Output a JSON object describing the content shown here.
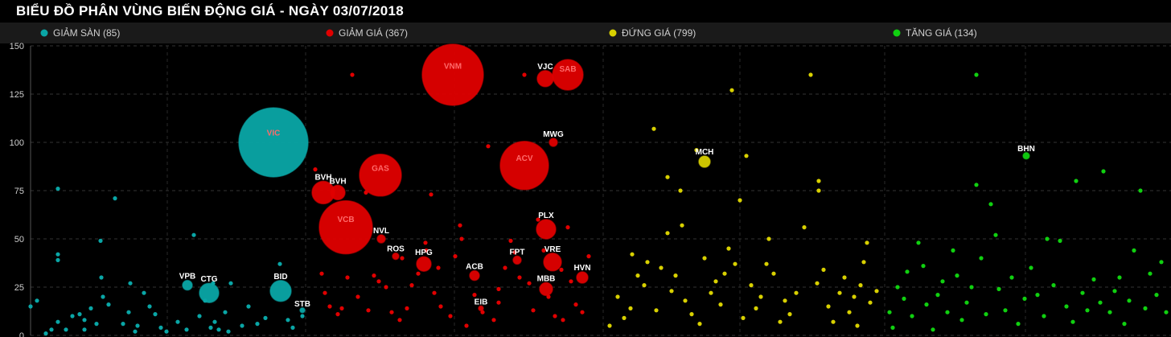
{
  "chart_data": {
    "type": "scatter",
    "title": "BIỂU ĐỒ PHÂN VÙNG BIẾN ĐỘNG GIÁ - NGÀY 03/07/2018",
    "ylim": [
      0,
      150
    ],
    "yticks": [
      0,
      25,
      50,
      75,
      100,
      125,
      150
    ],
    "xlim": [
      0,
      1456
    ],
    "grid": true,
    "legend_placement": "top",
    "series": [
      {
        "name": "GIẢM SÀN (85)",
        "color": "#0aa6a6",
        "points": [
          {
            "x": 38,
            "y": 15
          },
          {
            "x": 46,
            "y": 18
          },
          {
            "x": 57,
            "y": 1
          },
          {
            "x": 64,
            "y": 3
          },
          {
            "x": 72,
            "y": 76
          },
          {
            "x": 82,
            "y": 3
          },
          {
            "x": 72,
            "y": 7
          },
          {
            "x": 99,
            "y": 11
          },
          {
            "x": 72,
            "y": 39
          },
          {
            "x": 72,
            "y": 42
          },
          {
            "x": 105,
            "y": 8
          },
          {
            "x": 105,
            "y": 3
          },
          {
            "x": 120,
            "y": 6
          },
          {
            "x": 125,
            "y": 49
          },
          {
            "x": 126,
            "y": 30
          },
          {
            "x": 128,
            "y": 20
          },
          {
            "x": 135,
            "y": 16
          },
          {
            "x": 143,
            "y": 71
          },
          {
            "x": 153,
            "y": 6
          },
          {
            "x": 160,
            "y": 12
          },
          {
            "x": 162,
            "y": 27
          },
          {
            "x": 168,
            "y": 2
          },
          {
            "x": 171,
            "y": 5
          },
          {
            "x": 179,
            "y": 22
          },
          {
            "x": 186,
            "y": 15
          },
          {
            "x": 193,
            "y": 11
          },
          {
            "x": 200,
            "y": 4
          },
          {
            "x": 207,
            "y": 2
          },
          {
            "x": 221,
            "y": 7
          },
          {
            "x": 232,
            "y": 3
          },
          {
            "x": 241,
            "y": 52
          },
          {
            "x": 248,
            "y": 10
          },
          {
            "x": 255,
            "y": 18
          },
          {
            "x": 262,
            "y": 4
          },
          {
            "x": 267,
            "y": 7
          },
          {
            "x": 272,
            "y": 3
          },
          {
            "x": 280,
            "y": 12
          },
          {
            "x": 284,
            "y": 2
          },
          {
            "x": 287,
            "y": 27
          },
          {
            "x": 301,
            "y": 5
          },
          {
            "x": 309,
            "y": 15
          },
          {
            "x": 320,
            "y": 6
          },
          {
            "x": 330,
            "y": 9
          },
          {
            "x": 348,
            "y": 37
          },
          {
            "x": 358,
            "y": 8
          },
          {
            "x": 364,
            "y": 4
          },
          {
            "x": 376,
            "y": 10
          },
          {
            "x": 265,
            "y": 27
          },
          {
            "x": 113,
            "y": 14
          },
          {
            "x": 90,
            "y": 10
          }
        ],
        "labeled": [
          {
            "label": "VIC",
            "x": 340,
            "y": 100,
            "size": 43
          },
          {
            "label": "VPB",
            "x": 233,
            "y": 26,
            "size": 6
          },
          {
            "label": "CTG",
            "x": 260,
            "y": 22,
            "size": 12
          },
          {
            "label": "BID",
            "x": 349,
            "y": 23,
            "size": 13
          },
          {
            "label": "STB",
            "x": 376,
            "y": 13,
            "size": 3
          }
        ]
      },
      {
        "name": "GIẢM GIÁ (367)",
        "color": "#e00000",
        "points": [
          {
            "x": 392,
            "y": 86
          },
          {
            "x": 400,
            "y": 32
          },
          {
            "x": 404,
            "y": 22
          },
          {
            "x": 410,
            "y": 15
          },
          {
            "x": 420,
            "y": 11
          },
          {
            "x": 438,
            "y": 135
          },
          {
            "x": 432,
            "y": 30
          },
          {
            "x": 445,
            "y": 20
          },
          {
            "x": 458,
            "y": 13
          },
          {
            "x": 465,
            "y": 31
          },
          {
            "x": 471,
            "y": 28
          },
          {
            "x": 480,
            "y": 25
          },
          {
            "x": 487,
            "y": 12
          },
          {
            "x": 497,
            "y": 8
          },
          {
            "x": 506,
            "y": 14
          },
          {
            "x": 512,
            "y": 26
          },
          {
            "x": 520,
            "y": 32
          },
          {
            "x": 529,
            "y": 48
          },
          {
            "x": 536,
            "y": 73
          },
          {
            "x": 540,
            "y": 22
          },
          {
            "x": 548,
            "y": 15
          },
          {
            "x": 560,
            "y": 10
          },
          {
            "x": 566,
            "y": 41
          },
          {
            "x": 572,
            "y": 57
          },
          {
            "x": 574,
            "y": 50
          },
          {
            "x": 580,
            "y": 5
          },
          {
            "x": 590,
            "y": 21
          },
          {
            "x": 600,
            "y": 12
          },
          {
            "x": 607,
            "y": 98
          },
          {
            "x": 614,
            "y": 8
          },
          {
            "x": 620,
            "y": 24
          },
          {
            "x": 628,
            "y": 35
          },
          {
            "x": 635,
            "y": 49
          },
          {
            "x": 640,
            "y": 43
          },
          {
            "x": 646,
            "y": 30
          },
          {
            "x": 652,
            "y": 135
          },
          {
            "x": 658,
            "y": 27
          },
          {
            "x": 663,
            "y": 13
          },
          {
            "x": 669,
            "y": 60
          },
          {
            "x": 676,
            "y": 44
          },
          {
            "x": 682,
            "y": 20
          },
          {
            "x": 690,
            "y": 10
          },
          {
            "x": 698,
            "y": 34
          },
          {
            "x": 706,
            "y": 56
          },
          {
            "x": 710,
            "y": 28
          },
          {
            "x": 716,
            "y": 16
          },
          {
            "x": 724,
            "y": 12
          },
          {
            "x": 732,
            "y": 41
          },
          {
            "x": 455,
            "y": 74
          },
          {
            "x": 530,
            "y": 44
          },
          {
            "x": 545,
            "y": 35
          },
          {
            "x": 500,
            "y": 40
          },
          {
            "x": 425,
            "y": 14
          },
          {
            "x": 620,
            "y": 17
          },
          {
            "x": 700,
            "y": 8
          }
        ],
        "labeled": [
          {
            "label": "VNM",
            "x": 563,
            "y": 135,
            "size": 38
          },
          {
            "label": "SAB",
            "x": 706,
            "y": 135,
            "size": 19
          },
          {
            "label": "VJC",
            "x": 678,
            "y": 133,
            "size": 10
          },
          {
            "label": "MWG",
            "x": 688,
            "y": 100,
            "size": 5
          },
          {
            "label": "GAS",
            "x": 473,
            "y": 83,
            "size": 26
          },
          {
            "label": "ACV",
            "x": 652,
            "y": 88,
            "size": 30
          },
          {
            "label": "BVH",
            "x": 402,
            "y": 74,
            "size": 14
          },
          {
            "label": "BVH",
            "x": 420,
            "y": 74,
            "size": 9
          },
          {
            "label": "VCB",
            "x": 430,
            "y": 56,
            "size": 33
          },
          {
            "label": "NVL",
            "x": 474,
            "y": 50,
            "size": 5
          },
          {
            "label": "PLX",
            "x": 679,
            "y": 55,
            "size": 12
          },
          {
            "label": "ROS",
            "x": 492,
            "y": 41,
            "size": 4
          },
          {
            "label": "HPG",
            "x": 527,
            "y": 37,
            "size": 9
          },
          {
            "label": "FPT",
            "x": 643,
            "y": 39,
            "size": 5
          },
          {
            "label": "VRE",
            "x": 687,
            "y": 38,
            "size": 11
          },
          {
            "label": "ACB",
            "x": 590,
            "y": 31,
            "size": 6
          },
          {
            "label": "HVN",
            "x": 724,
            "y": 30,
            "size": 7
          },
          {
            "label": "MBB",
            "x": 679,
            "y": 24,
            "size": 8
          },
          {
            "label": "EIB",
            "x": 598,
            "y": 14,
            "size": 3
          }
        ]
      },
      {
        "name": "ĐỨNG GIÁ (799)",
        "color": "#d8d000",
        "points": [
          {
            "x": 758,
            "y": 5
          },
          {
            "x": 768,
            "y": 20
          },
          {
            "x": 776,
            "y": 9
          },
          {
            "x": 784,
            "y": 14
          },
          {
            "x": 786,
            "y": 42
          },
          {
            "x": 793,
            "y": 31
          },
          {
            "x": 801,
            "y": 26
          },
          {
            "x": 805,
            "y": 38
          },
          {
            "x": 813,
            "y": 107
          },
          {
            "x": 816,
            "y": 13
          },
          {
            "x": 822,
            "y": 35
          },
          {
            "x": 830,
            "y": 82
          },
          {
            "x": 830,
            "y": 53
          },
          {
            "x": 835,
            "y": 23
          },
          {
            "x": 840,
            "y": 31
          },
          {
            "x": 846,
            "y": 75
          },
          {
            "x": 848,
            "y": 57
          },
          {
            "x": 852,
            "y": 18
          },
          {
            "x": 860,
            "y": 11
          },
          {
            "x": 866,
            "y": 96
          },
          {
            "x": 870,
            "y": 6
          },
          {
            "x": 876,
            "y": 40
          },
          {
            "x": 884,
            "y": 22
          },
          {
            "x": 890,
            "y": 28
          },
          {
            "x": 896,
            "y": 16
          },
          {
            "x": 901,
            "y": 32
          },
          {
            "x": 906,
            "y": 45
          },
          {
            "x": 910,
            "y": 127
          },
          {
            "x": 914,
            "y": 37
          },
          {
            "x": 920,
            "y": 70
          },
          {
            "x": 924,
            "y": 9
          },
          {
            "x": 928,
            "y": 93
          },
          {
            "x": 934,
            "y": 26
          },
          {
            "x": 940,
            "y": 14
          },
          {
            "x": 946,
            "y": 20
          },
          {
            "x": 953,
            "y": 37
          },
          {
            "x": 956,
            "y": 50
          },
          {
            "x": 962,
            "y": 32
          },
          {
            "x": 970,
            "y": 7
          },
          {
            "x": 976,
            "y": 18
          },
          {
            "x": 982,
            "y": 11
          },
          {
            "x": 990,
            "y": 22
          },
          {
            "x": 1000,
            "y": 56
          },
          {
            "x": 1008,
            "y": 135
          },
          {
            "x": 1016,
            "y": 27
          },
          {
            "x": 1018,
            "y": 75
          },
          {
            "x": 1018,
            "y": 80
          },
          {
            "x": 1024,
            "y": 34
          },
          {
            "x": 1030,
            "y": 15
          },
          {
            "x": 1036,
            "y": 7
          },
          {
            "x": 1044,
            "y": 22
          },
          {
            "x": 1050,
            "y": 30
          },
          {
            "x": 1056,
            "y": 12
          },
          {
            "x": 1062,
            "y": 20
          },
          {
            "x": 1070,
            "y": 26
          },
          {
            "x": 1078,
            "y": 48
          },
          {
            "x": 1082,
            "y": 17
          },
          {
            "x": 1090,
            "y": 23
          },
          {
            "x": 1074,
            "y": 38
          },
          {
            "x": 1066,
            "y": 5
          }
        ],
        "labeled": [
          {
            "label": "MCH",
            "x": 876,
            "y": 90,
            "size": 7
          }
        ]
      },
      {
        "name": "TĂNG GIÁ (134)",
        "color": "#10d010",
        "points": [
          {
            "x": 1106,
            "y": 12
          },
          {
            "x": 1110,
            "y": 4
          },
          {
            "x": 1116,
            "y": 25
          },
          {
            "x": 1124,
            "y": 19
          },
          {
            "x": 1128,
            "y": 33
          },
          {
            "x": 1134,
            "y": 10
          },
          {
            "x": 1142,
            "y": 48
          },
          {
            "x": 1148,
            "y": 36
          },
          {
            "x": 1152,
            "y": 16
          },
          {
            "x": 1160,
            "y": 3
          },
          {
            "x": 1166,
            "y": 21
          },
          {
            "x": 1172,
            "y": 28
          },
          {
            "x": 1178,
            "y": 12
          },
          {
            "x": 1185,
            "y": 44
          },
          {
            "x": 1190,
            "y": 31
          },
          {
            "x": 1196,
            "y": 8
          },
          {
            "x": 1202,
            "y": 17
          },
          {
            "x": 1208,
            "y": 25
          },
          {
            "x": 1214,
            "y": 135
          },
          {
            "x": 1214,
            "y": 78
          },
          {
            "x": 1220,
            "y": 40
          },
          {
            "x": 1226,
            "y": 11
          },
          {
            "x": 1232,
            "y": 68
          },
          {
            "x": 1238,
            "y": 52
          },
          {
            "x": 1242,
            "y": 24
          },
          {
            "x": 1250,
            "y": 13
          },
          {
            "x": 1258,
            "y": 30
          },
          {
            "x": 1266,
            "y": 6
          },
          {
            "x": 1274,
            "y": 19
          },
          {
            "x": 1282,
            "y": 35
          },
          {
            "x": 1290,
            "y": 21
          },
          {
            "x": 1298,
            "y": 10
          },
          {
            "x": 1302,
            "y": 50
          },
          {
            "x": 1310,
            "y": 26
          },
          {
            "x": 1318,
            "y": 49
          },
          {
            "x": 1326,
            "y": 15
          },
          {
            "x": 1334,
            "y": 7
          },
          {
            "x": 1338,
            "y": 80
          },
          {
            "x": 1346,
            "y": 22
          },
          {
            "x": 1352,
            "y": 13
          },
          {
            "x": 1360,
            "y": 29
          },
          {
            "x": 1368,
            "y": 17
          },
          {
            "x": 1372,
            "y": 85
          },
          {
            "x": 1380,
            "y": 12
          },
          {
            "x": 1386,
            "y": 23
          },
          {
            "x": 1392,
            "y": 30
          },
          {
            "x": 1398,
            "y": 6
          },
          {
            "x": 1404,
            "y": 18
          },
          {
            "x": 1410,
            "y": 44
          },
          {
            "x": 1418,
            "y": 75
          },
          {
            "x": 1424,
            "y": 14
          },
          {
            "x": 1430,
            "y": 32
          },
          {
            "x": 1438,
            "y": 21
          },
          {
            "x": 1444,
            "y": 38
          },
          {
            "x": 1450,
            "y": 12
          }
        ],
        "labeled": [
          {
            "label": "BHN",
            "x": 1276,
            "y": 93,
            "size": 4
          }
        ]
      }
    ]
  }
}
